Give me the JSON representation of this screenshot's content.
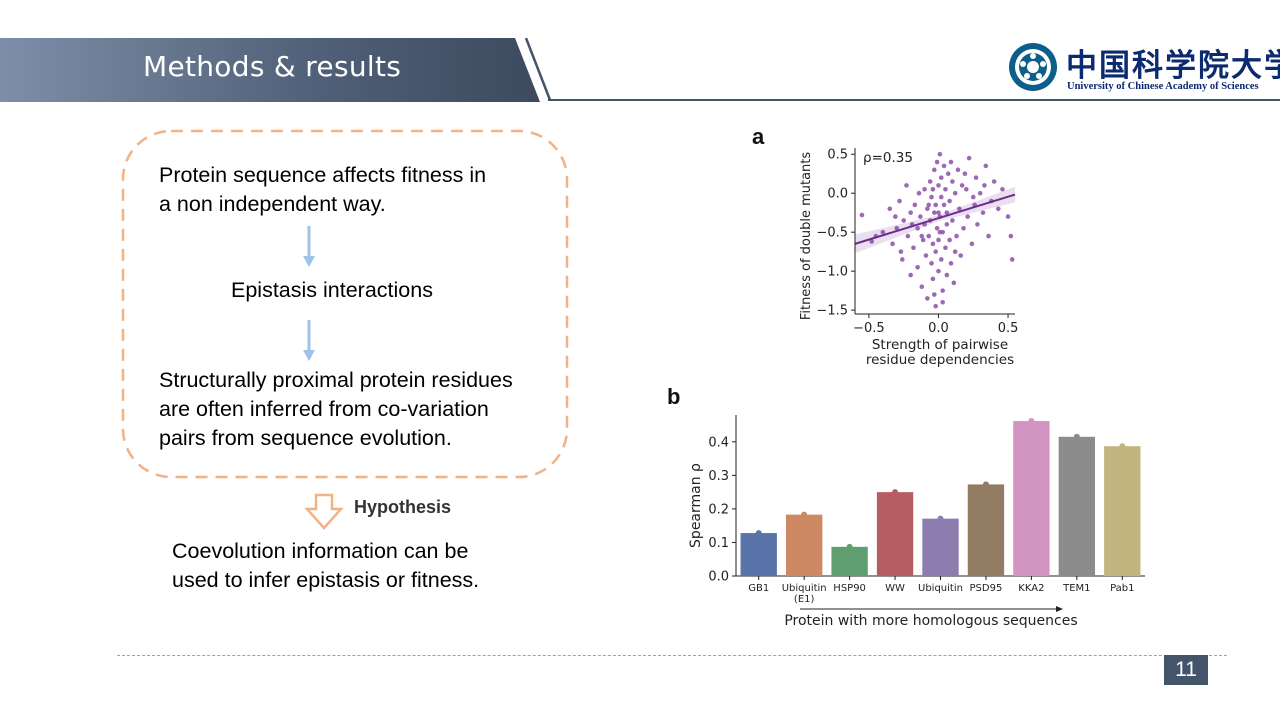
{
  "slide": {
    "title": "Methods & results",
    "logo_cn": "中国科学院大学",
    "logo_en": "University of  Chinese Academy of Sciences",
    "page_number": "11"
  },
  "flow": {
    "step1_line1": "Protein sequence affects fitness in",
    "step1_line2": "a non independent way.",
    "step2": "Epistasis interactions",
    "step3_line1": "Structurally proximal protein residues",
    "step3_line2": "are often inferred from co-variation",
    "step3_line3": "pairs from sequence evolution.",
    "hypothesis_label": "Hypothesis",
    "conclusion_line1": "Coevolution information can be",
    "conclusion_line2": "used to infer epistasis or fitness."
  },
  "colors": {
    "header_dark": "#44546a",
    "header_light": "#8497b0",
    "dashed_box": "#f4b183",
    "arrow_blue": "#9dc3e6",
    "hollow_arrow": "#f4b183",
    "scatter_purple": "#8b4fa8"
  },
  "chart_data": [
    {
      "panel": "a",
      "type": "scatter",
      "annotation": "ρ=0.35",
      "xlabel_line1": "Strength of pairwise",
      "xlabel_line2": "residue dependencies",
      "ylabel": "Fitness of double mutants",
      "xlim": [
        -0.6,
        0.55
      ],
      "ylim": [
        -1.55,
        0.58
      ],
      "xticks": [
        "−0.5",
        "0.0",
        "0.5"
      ],
      "xtick_values": [
        -0.5,
        0.0,
        0.5
      ],
      "yticks": [
        "0.5",
        "0.0",
        "−0.5",
        "−1.0",
        "−1.5"
      ],
      "ytick_values": [
        0.5,
        0.0,
        -0.5,
        -1.0,
        -1.5
      ],
      "regression": {
        "slope": 0.55,
        "intercept": -0.32
      },
      "points": [
        [
          -0.55,
          -0.28
        ],
        [
          -0.48,
          -0.62
        ],
        [
          -0.45,
          -0.55
        ],
        [
          -0.4,
          -0.5
        ],
        [
          -0.35,
          -0.2
        ],
        [
          -0.33,
          -0.65
        ],
        [
          -0.3,
          -0.45
        ],
        [
          -0.28,
          -0.1
        ],
        [
          -0.26,
          -0.85
        ],
        [
          -0.25,
          -0.35
        ],
        [
          -0.22,
          -0.55
        ],
        [
          -0.2,
          -0.25
        ],
        [
          -0.2,
          -1.05
        ],
        [
          -0.18,
          -0.7
        ],
        [
          -0.17,
          -0.15
        ],
        [
          -0.15,
          -0.45
        ],
        [
          -0.15,
          -0.95
        ],
        [
          -0.13,
          -0.3
        ],
        [
          -0.12,
          -1.2
        ],
        [
          -0.11,
          -0.6
        ],
        [
          -0.1,
          0.05
        ],
        [
          -0.1,
          -0.4
        ],
        [
          -0.09,
          -0.8
        ],
        [
          -0.08,
          -0.2
        ],
        [
          -0.08,
          -1.35
        ],
        [
          -0.07,
          -0.55
        ],
        [
          -0.06,
          0.15
        ],
        [
          -0.06,
          -0.35
        ],
        [
          -0.05,
          -0.9
        ],
        [
          -0.05,
          -0.05
        ],
        [
          -0.04,
          -0.65
        ],
        [
          -0.04,
          -1.1
        ],
        [
          -0.03,
          0.3
        ],
        [
          -0.03,
          -0.25
        ],
        [
          -0.02,
          -0.75
        ],
        [
          -0.02,
          -1.45
        ],
        [
          -0.01,
          0.4
        ],
        [
          -0.01,
          -0.45
        ],
        [
          0.0,
          0.1
        ],
        [
          0.0,
          -0.6
        ],
        [
          0.0,
          -1.0
        ],
        [
          0.01,
          0.5
        ],
        [
          0.01,
          -0.3
        ],
        [
          0.02,
          -0.85
        ],
        [
          0.02,
          0.2
        ],
        [
          0.03,
          -0.5
        ],
        [
          0.03,
          -1.25
        ],
        [
          0.04,
          0.35
        ],
        [
          0.04,
          -0.15
        ],
        [
          0.05,
          -0.7
        ],
        [
          0.05,
          0.05
        ],
        [
          0.06,
          -1.05
        ],
        [
          0.06,
          -0.4
        ],
        [
          0.07,
          0.25
        ],
        [
          0.08,
          -0.6
        ],
        [
          0.08,
          -0.1
        ],
        [
          0.09,
          -0.9
        ],
        [
          0.1,
          0.15
        ],
        [
          0.1,
          -0.35
        ],
        [
          0.11,
          -1.15
        ],
        [
          0.12,
          0.0
        ],
        [
          0.13,
          -0.55
        ],
        [
          0.14,
          0.3
        ],
        [
          0.15,
          -0.2
        ],
        [
          0.16,
          -0.8
        ],
        [
          0.17,
          0.1
        ],
        [
          0.18,
          -0.45
        ],
        [
          0.2,
          0.05
        ],
        [
          0.21,
          -0.3
        ],
        [
          0.22,
          0.45
        ],
        [
          0.24,
          -0.65
        ],
        [
          0.25,
          -0.05
        ],
        [
          0.27,
          0.2
        ],
        [
          0.28,
          -0.4
        ],
        [
          0.3,
          0.0
        ],
        [
          0.32,
          -0.25
        ],
        [
          0.34,
          0.35
        ],
        [
          0.36,
          -0.55
        ],
        [
          0.38,
          -0.1
        ],
        [
          0.4,
          0.15
        ],
        [
          0.43,
          -0.2
        ],
        [
          0.46,
          0.05
        ],
        [
          0.5,
          -0.3
        ],
        [
          0.52,
          -0.55
        ],
        [
          0.53,
          -0.85
        ],
        [
          -0.14,
          0.0
        ],
        [
          -0.19,
          -0.4
        ],
        [
          -0.23,
          0.1
        ],
        [
          -0.27,
          -0.75
        ],
        [
          -0.31,
          -0.3
        ],
        [
          0.19,
          0.25
        ],
        [
          0.26,
          -0.15
        ],
        [
          0.33,
          0.1
        ],
        [
          -0.02,
          -0.15
        ],
        [
          0.0,
          -0.25
        ],
        [
          0.02,
          -0.05
        ],
        [
          -0.04,
          0.05
        ],
        [
          0.06,
          -0.25
        ],
        [
          0.01,
          -0.5
        ],
        [
          -0.07,
          -0.15
        ],
        [
          0.09,
          0.4
        ],
        [
          -0.12,
          -0.55
        ],
        [
          0.12,
          -0.75
        ],
        [
          -0.03,
          -1.3
        ],
        [
          0.03,
          -1.4
        ]
      ]
    },
    {
      "panel": "b",
      "type": "bar",
      "ylabel": "Spearman ρ",
      "xlabel": "Protein with more homologous sequences",
      "categories": [
        "GB1",
        "Ubiquitin\n(E1)",
        "HSP90",
        "WW",
        "Ubiquitin",
        "PSD95",
        "KKA2",
        "TEM1",
        "Pab1"
      ],
      "values": [
        0.128,
        0.183,
        0.087,
        0.25,
        0.171,
        0.273,
        0.462,
        0.415,
        0.387
      ],
      "bar_colors": [
        "#5874a8",
        "#cc8963",
        "#5f9e6e",
        "#b55d60",
        "#8c7daf",
        "#927c64",
        "#d295c1",
        "#8c8c8c",
        "#c2b57f"
      ],
      "ylim": [
        0,
        0.48
      ],
      "yticks": [
        "0.0",
        "0.1",
        "0.2",
        "0.3",
        "0.4"
      ],
      "ytick_values": [
        0,
        0.1,
        0.2,
        0.3,
        0.4
      ]
    }
  ]
}
